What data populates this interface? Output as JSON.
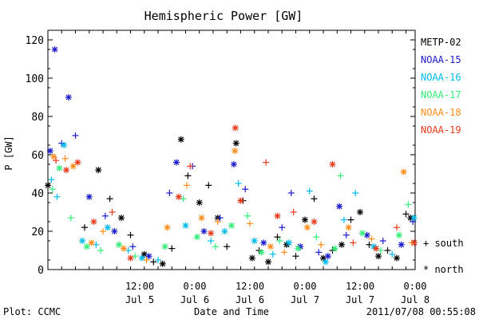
{
  "chart_data": {
    "type": "scatter",
    "title": "Hemispheric Power [GW]",
    "ylabel": "P [GW]",
    "xlabel": "Date and Time",
    "ylim": [
      0,
      125
    ],
    "xlim": [
      "2011-07-04 16:00",
      "2011-07-08 00:00"
    ],
    "yticks": [
      0,
      20,
      40,
      60,
      80,
      100,
      120
    ],
    "xticks": [
      {
        "x": "2011-07-05 12:00",
        "time": "12:00",
        "date": "Jul 5"
      },
      {
        "x": "2011-07-06 00:00",
        "time": "0:00",
        "date": "Jul 6"
      },
      {
        "x": "2011-07-06 12:00",
        "time": "12:00",
        "date": "Jul 6"
      },
      {
        "x": "2011-07-07 00:00",
        "time": "0:00",
        "date": "Jul 7"
      },
      {
        "x": "2011-07-07 12:00",
        "time": "12:00",
        "date": "Jul 7"
      },
      {
        "x": "2011-07-08 00:00",
        "time": "0:00",
        "date": "Jul 8"
      }
    ],
    "marker_legend": [
      {
        "marker": "plus",
        "label": "south"
      },
      {
        "marker": "star",
        "label": "north"
      }
    ],
    "series": [
      {
        "name": "METP-02",
        "color": "#000000",
        "points": [
          [
            "2011-07-04 16:00",
            44,
            "star"
          ],
          [
            "2011-07-05 00:00",
            22,
            "plus"
          ],
          [
            "2011-07-05 03:00",
            52,
            "star"
          ],
          [
            "2011-07-05 05:30",
            37,
            "plus"
          ],
          [
            "2011-07-05 08:00",
            27,
            "star"
          ],
          [
            "2011-07-05 10:00",
            18,
            "plus"
          ],
          [
            "2011-07-05 13:00",
            8,
            "star"
          ],
          [
            "2011-07-05 15:00",
            4,
            "plus"
          ],
          [
            "2011-07-05 17:00",
            3,
            "star"
          ],
          [
            "2011-07-05 19:00",
            11,
            "plus"
          ],
          [
            "2011-07-05 21:00",
            68,
            "star"
          ],
          [
            "2011-07-05 22:30",
            49,
            "plus"
          ],
          [
            "2011-07-06 01:00",
            35,
            "star"
          ],
          [
            "2011-07-06 03:00",
            44,
            "plus"
          ],
          [
            "2011-07-06 05:00",
            27,
            "star"
          ],
          [
            "2011-07-06 07:00",
            12,
            "plus"
          ],
          [
            "2011-07-06 09:00",
            66,
            "star"
          ],
          [
            "2011-07-06 10:30",
            36,
            "plus"
          ],
          [
            "2011-07-06 12:30",
            6,
            "star"
          ],
          [
            "2011-07-06 14:00",
            10,
            "plus"
          ],
          [
            "2011-07-06 16:00",
            4,
            "star"
          ],
          [
            "2011-07-06 18:00",
            17,
            "plus"
          ],
          [
            "2011-07-06 20:00",
            13,
            "star"
          ],
          [
            "2011-07-06 22:00",
            7,
            "plus"
          ],
          [
            "2011-07-07 00:00",
            26,
            "star"
          ],
          [
            "2011-07-07 02:00",
            37,
            "plus"
          ],
          [
            "2011-07-07 04:00",
            6,
            "star"
          ],
          [
            "2011-07-07 06:00",
            10,
            "plus"
          ],
          [
            "2011-07-07 08:00",
            13,
            "star"
          ],
          [
            "2011-07-07 10:00",
            26,
            "plus"
          ],
          [
            "2011-07-07 12:00",
            30,
            "star"
          ],
          [
            "2011-07-07 14:00",
            13,
            "plus"
          ],
          [
            "2011-07-07 16:00",
            7,
            "star"
          ],
          [
            "2011-07-07 18:00",
            10,
            "plus"
          ],
          [
            "2011-07-07 20:00",
            6,
            "star"
          ],
          [
            "2011-07-07 22:00",
            29,
            "plus"
          ],
          [
            "2011-07-07 23:00",
            27,
            "star"
          ]
        ]
      },
      {
        "name": "NOAA-15",
        "color": "#1a1acc",
        "points": [
          [
            "2011-07-04 16:30",
            62,
            "star"
          ],
          [
            "2011-07-04 17:30",
            115,
            "star"
          ],
          [
            "2011-07-04 19:00",
            66,
            "plus"
          ],
          [
            "2011-07-04 20:30",
            90,
            "star"
          ],
          [
            "2011-07-04 22:00",
            70,
            "plus"
          ],
          [
            "2011-07-05 01:00",
            38,
            "star"
          ],
          [
            "2011-07-05 04:30",
            28,
            "plus"
          ],
          [
            "2011-07-05 06:30",
            20,
            "star"
          ],
          [
            "2011-07-05 10:30",
            12,
            "plus"
          ],
          [
            "2011-07-05 14:00",
            7,
            "star"
          ],
          [
            "2011-07-05 18:30",
            40,
            "plus"
          ],
          [
            "2011-07-05 20:00",
            56,
            "star"
          ],
          [
            "2011-07-05 23:30",
            54,
            "plus"
          ],
          [
            "2011-07-06 02:00",
            20,
            "star"
          ],
          [
            "2011-07-06 05:30",
            27,
            "plus"
          ],
          [
            "2011-07-06 08:30",
            55,
            "star"
          ],
          [
            "2011-07-06 11:00",
            42,
            "plus"
          ],
          [
            "2011-07-06 15:00",
            14,
            "star"
          ],
          [
            "2011-07-06 19:00",
            22,
            "plus"
          ],
          [
            "2011-07-06 21:00",
            40,
            "plus"
          ],
          [
            "2011-07-06 23:00",
            12,
            "star"
          ],
          [
            "2011-07-07 03:00",
            9,
            "plus"
          ],
          [
            "2011-07-07 05:00",
            7,
            "star"
          ],
          [
            "2011-07-07 07:30",
            33,
            "star"
          ],
          [
            "2011-07-07 09:00",
            18,
            "plus"
          ],
          [
            "2011-07-07 13:30",
            18,
            "star"
          ],
          [
            "2011-07-07 17:00",
            15,
            "plus"
          ],
          [
            "2011-07-07 21:00",
            13,
            "star"
          ],
          [
            "2011-07-07 23:30",
            25,
            "plus"
          ]
        ]
      },
      {
        "name": "NOAA-16",
        "color": "#00bbee",
        "points": [
          [
            "2011-07-04 16:45",
            47,
            "plus"
          ],
          [
            "2011-07-04 18:00",
            38,
            "plus"
          ],
          [
            "2011-07-04 19:30",
            65,
            "star"
          ],
          [
            "2011-07-04 23:30",
            15,
            "star"
          ],
          [
            "2011-07-05 02:30",
            13,
            "plus"
          ],
          [
            "2011-07-05 05:00",
            22,
            "star"
          ],
          [
            "2011-07-05 09:30",
            10,
            "plus"
          ],
          [
            "2011-07-05 12:30",
            6,
            "star"
          ],
          [
            "2011-07-05 16:00",
            5,
            "plus"
          ],
          [
            "2011-07-05 22:00",
            23,
            "star"
          ],
          [
            "2011-07-06 03:30",
            15,
            "plus"
          ],
          [
            "2011-07-06 06:30",
            20,
            "star"
          ],
          [
            "2011-07-06 09:30",
            45,
            "plus"
          ],
          [
            "2011-07-06 13:00",
            15,
            "star"
          ],
          [
            "2011-07-06 17:00",
            8,
            "plus"
          ],
          [
            "2011-07-06 20:30",
            14,
            "star"
          ],
          [
            "2011-07-07 01:00",
            41,
            "plus"
          ],
          [
            "2011-07-07 04:30",
            4,
            "star"
          ],
          [
            "2011-07-07 08:30",
            26,
            "plus"
          ],
          [
            "2011-07-07 11:00",
            40,
            "plus"
          ],
          [
            "2011-07-07 15:00",
            12,
            "star"
          ],
          [
            "2011-07-07 19:00",
            8,
            "plus"
          ],
          [
            "2011-07-07 23:45",
            27,
            "star"
          ]
        ]
      },
      {
        "name": "NOAA-17",
        "color": "#33ee77",
        "points": [
          [
            "2011-07-04 17:00",
            42,
            "plus"
          ],
          [
            "2011-07-04 18:30",
            53,
            "star"
          ],
          [
            "2011-07-04 21:00",
            27,
            "plus"
          ],
          [
            "2011-07-05 00:30",
            12,
            "star"
          ],
          [
            "2011-07-05 03:30",
            10,
            "plus"
          ],
          [
            "2011-07-05 07:30",
            13,
            "star"
          ],
          [
            "2011-07-05 11:00",
            7,
            "plus"
          ],
          [
            "2011-07-05 17:30",
            12,
            "star"
          ],
          [
            "2011-07-05 21:30",
            37,
            "plus"
          ],
          [
            "2011-07-06 00:30",
            17,
            "star"
          ],
          [
            "2011-07-06 04:30",
            12,
            "plus"
          ],
          [
            "2011-07-06 08:00",
            23,
            "star"
          ],
          [
            "2011-07-06 11:30",
            28,
            "plus"
          ],
          [
            "2011-07-06 14:30",
            9,
            "star"
          ],
          [
            "2011-07-06 18:30",
            15,
            "plus"
          ],
          [
            "2011-07-06 22:30",
            11,
            "star"
          ],
          [
            "2011-07-07 02:30",
            17,
            "plus"
          ],
          [
            "2011-07-07 06:30",
            11,
            "star"
          ],
          [
            "2011-07-07 07:45",
            49,
            "plus"
          ],
          [
            "2011-07-07 12:30",
            19,
            "star"
          ],
          [
            "2011-07-07 16:30",
            10,
            "plus"
          ],
          [
            "2011-07-07 20:30",
            18,
            "star"
          ],
          [
            "2011-07-07 22:30",
            34,
            "plus"
          ]
        ]
      },
      {
        "name": "NOAA-18",
        "color": "#ff8c1a",
        "points": [
          [
            "2011-07-04 17:15",
            59,
            "star"
          ],
          [
            "2011-07-04 19:45",
            58,
            "plus"
          ],
          [
            "2011-07-04 21:30",
            54,
            "star"
          ],
          [
            "2011-07-05 01:30",
            14,
            "star"
          ],
          [
            "2011-07-05 04:00",
            20,
            "plus"
          ],
          [
            "2011-07-05 08:30",
            11,
            "star"
          ],
          [
            "2011-07-05 13:30",
            5,
            "plus"
          ],
          [
            "2011-07-05 18:00",
            22,
            "star"
          ],
          [
            "2011-07-05 22:15",
            44,
            "plus"
          ],
          [
            "2011-07-06 01:30",
            27,
            "star"
          ],
          [
            "2011-07-06 05:00",
            25,
            "plus"
          ],
          [
            "2011-07-06 08:45",
            62,
            "star"
          ],
          [
            "2011-07-06 12:00",
            24,
            "plus"
          ],
          [
            "2011-07-06 16:30",
            12,
            "star"
          ],
          [
            "2011-07-06 19:30",
            9,
            "plus"
          ],
          [
            "2011-07-07 00:30",
            22,
            "star"
          ],
          [
            "2011-07-07 03:30",
            13,
            "plus"
          ],
          [
            "2011-07-07 09:30",
            22,
            "star"
          ],
          [
            "2011-07-07 14:30",
            16,
            "plus"
          ],
          [
            "2011-07-07 21:30",
            51,
            "star"
          ],
          [
            "2011-07-07 23:15",
            14,
            "plus"
          ]
        ]
      },
      {
        "name": "NOAA-19",
        "color": "#e83a1a",
        "points": [
          [
            "2011-07-04 17:45",
            57,
            "plus"
          ],
          [
            "2011-07-04 20:00",
            52,
            "star"
          ],
          [
            "2011-07-04 22:30",
            56,
            "star"
          ],
          [
            "2011-07-05 02:00",
            25,
            "star"
          ],
          [
            "2011-07-05 06:00",
            30,
            "plus"
          ],
          [
            "2011-07-05 10:00",
            6,
            "star"
          ],
          [
            "2011-07-05 20:30",
            38,
            "star"
          ],
          [
            "2011-07-05 23:00",
            54,
            "plus"
          ],
          [
            "2011-07-06 03:30",
            19,
            "star"
          ],
          [
            "2011-07-06 08:50",
            74,
            "star"
          ],
          [
            "2011-07-06 10:00",
            36,
            "star"
          ],
          [
            "2011-07-06 15:30",
            56,
            "plus"
          ],
          [
            "2011-07-06 18:00",
            28,
            "star"
          ],
          [
            "2011-07-06 21:30",
            30,
            "plus"
          ],
          [
            "2011-07-07 02:00",
            25,
            "star"
          ],
          [
            "2011-07-07 06:00",
            55,
            "star"
          ],
          [
            "2011-07-07 10:30",
            14,
            "plus"
          ],
          [
            "2011-07-07 15:30",
            11,
            "star"
          ],
          [
            "2011-07-07 20:00",
            22,
            "plus"
          ],
          [
            "2011-07-07 23:50",
            14,
            "star"
          ]
        ]
      }
    ]
  },
  "footer": {
    "left": "Plot: CCMC",
    "center": "Date and Time",
    "right": "2011/07/08 00:55:08"
  }
}
